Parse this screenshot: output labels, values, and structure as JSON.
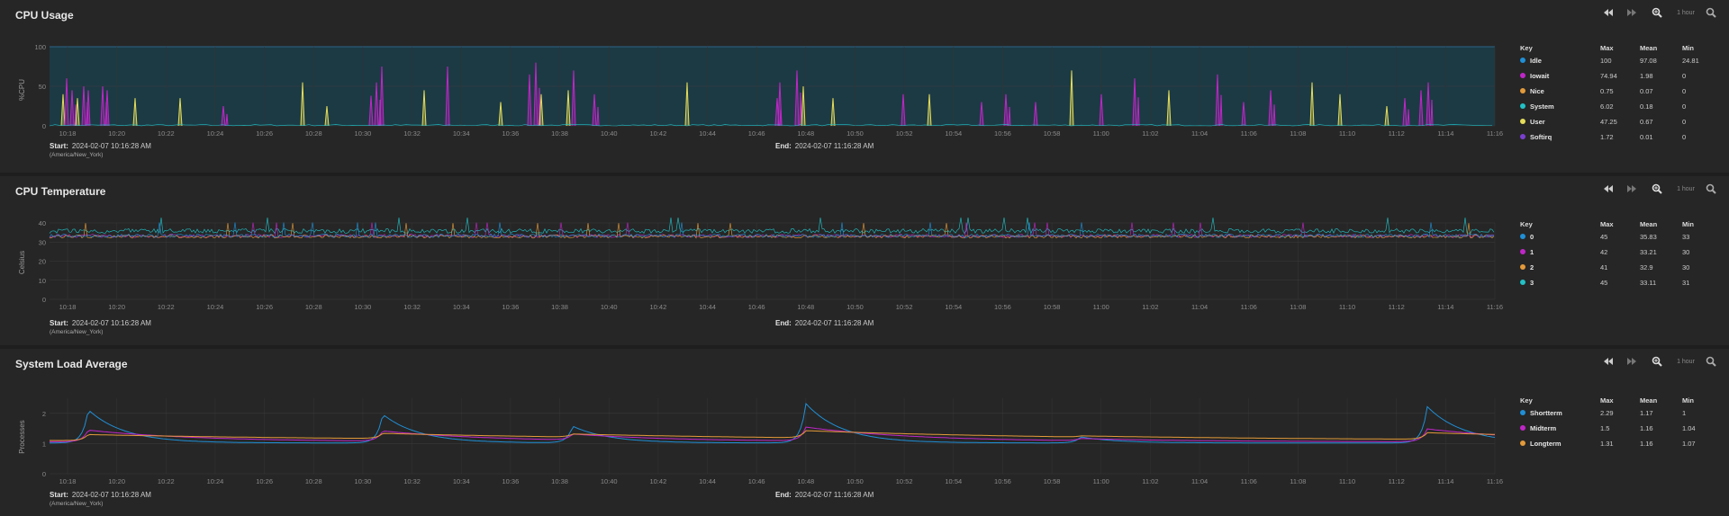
{
  "controls": {
    "range_label": "1 hour"
  },
  "time_axis": [
    "10:18",
    "10:20",
    "10:22",
    "10:24",
    "10:26",
    "10:28",
    "10:30",
    "10:32",
    "10:34",
    "10:36",
    "10:38",
    "10:40",
    "10:42",
    "10:44",
    "10:46",
    "10:48",
    "10:50",
    "10:52",
    "10:54",
    "10:56",
    "10:58",
    "11:00",
    "11:02",
    "11:04",
    "11:06",
    "11:08",
    "11:10",
    "11:12",
    "11:14",
    "11:16"
  ],
  "range": {
    "start_label": "Start:",
    "start_value": "2024-02-07 10:16:28 AM",
    "timezone": "(America/New_York)",
    "end_label": "End:",
    "end_value": "2024-02-07 11:16:28 AM"
  },
  "key_headers": {
    "key": "Key",
    "max": "Max",
    "mean": "Mean",
    "min": "Min"
  },
  "panels": [
    {
      "title": "CPU Usage",
      "ylabel": "%CPU",
      "yticks": [
        "100",
        "50",
        "0"
      ],
      "key": [
        {
          "name": "Idle",
          "max": "100",
          "mean": "97.08",
          "min": "24.81",
          "color": "#1f8fd6"
        },
        {
          "name": "Iowait",
          "max": "74.94",
          "mean": "1.98",
          "min": "0",
          "color": "#c026c8"
        },
        {
          "name": "Nice",
          "max": "0.75",
          "mean": "0.07",
          "min": "0",
          "color": "#e39a3a"
        },
        {
          "name": "System",
          "max": "6.02",
          "mean": "0.18",
          "min": "0",
          "color": "#21c1c6"
        },
        {
          "name": "User",
          "max": "47.25",
          "mean": "0.67",
          "min": "0",
          "color": "#e5dd5a"
        },
        {
          "name": "Softirq",
          "max": "1.72",
          "mean": "0.01",
          "min": "0",
          "color": "#7a3fd1"
        }
      ]
    },
    {
      "title": "CPU Temperature",
      "ylabel": "Celsius",
      "yticks": [
        "40",
        "30",
        "20",
        "10",
        "0"
      ],
      "key": [
        {
          "name": "0",
          "max": "45",
          "mean": "35.83",
          "min": "33",
          "color": "#1f8fd6"
        },
        {
          "name": "1",
          "max": "42",
          "mean": "33.21",
          "min": "30",
          "color": "#c026c8"
        },
        {
          "name": "2",
          "max": "41",
          "mean": "32.9",
          "min": "30",
          "color": "#e39a3a"
        },
        {
          "name": "3",
          "max": "45",
          "mean": "33.11",
          "min": "31",
          "color": "#21c1c6"
        }
      ]
    },
    {
      "title": "System Load Average",
      "ylabel": "Processes",
      "yticks": [
        "2",
        "1",
        "0"
      ],
      "key": [
        {
          "name": "Shortterm",
          "max": "2.29",
          "mean": "1.17",
          "min": "1",
          "color": "#1f8fd6"
        },
        {
          "name": "Midterm",
          "max": "1.5",
          "mean": "1.16",
          "min": "1.04",
          "color": "#c026c8"
        },
        {
          "name": "Longterm",
          "max": "1.31",
          "mean": "1.16",
          "min": "1.07",
          "color": "#e39a3a"
        }
      ]
    }
  ]
}
